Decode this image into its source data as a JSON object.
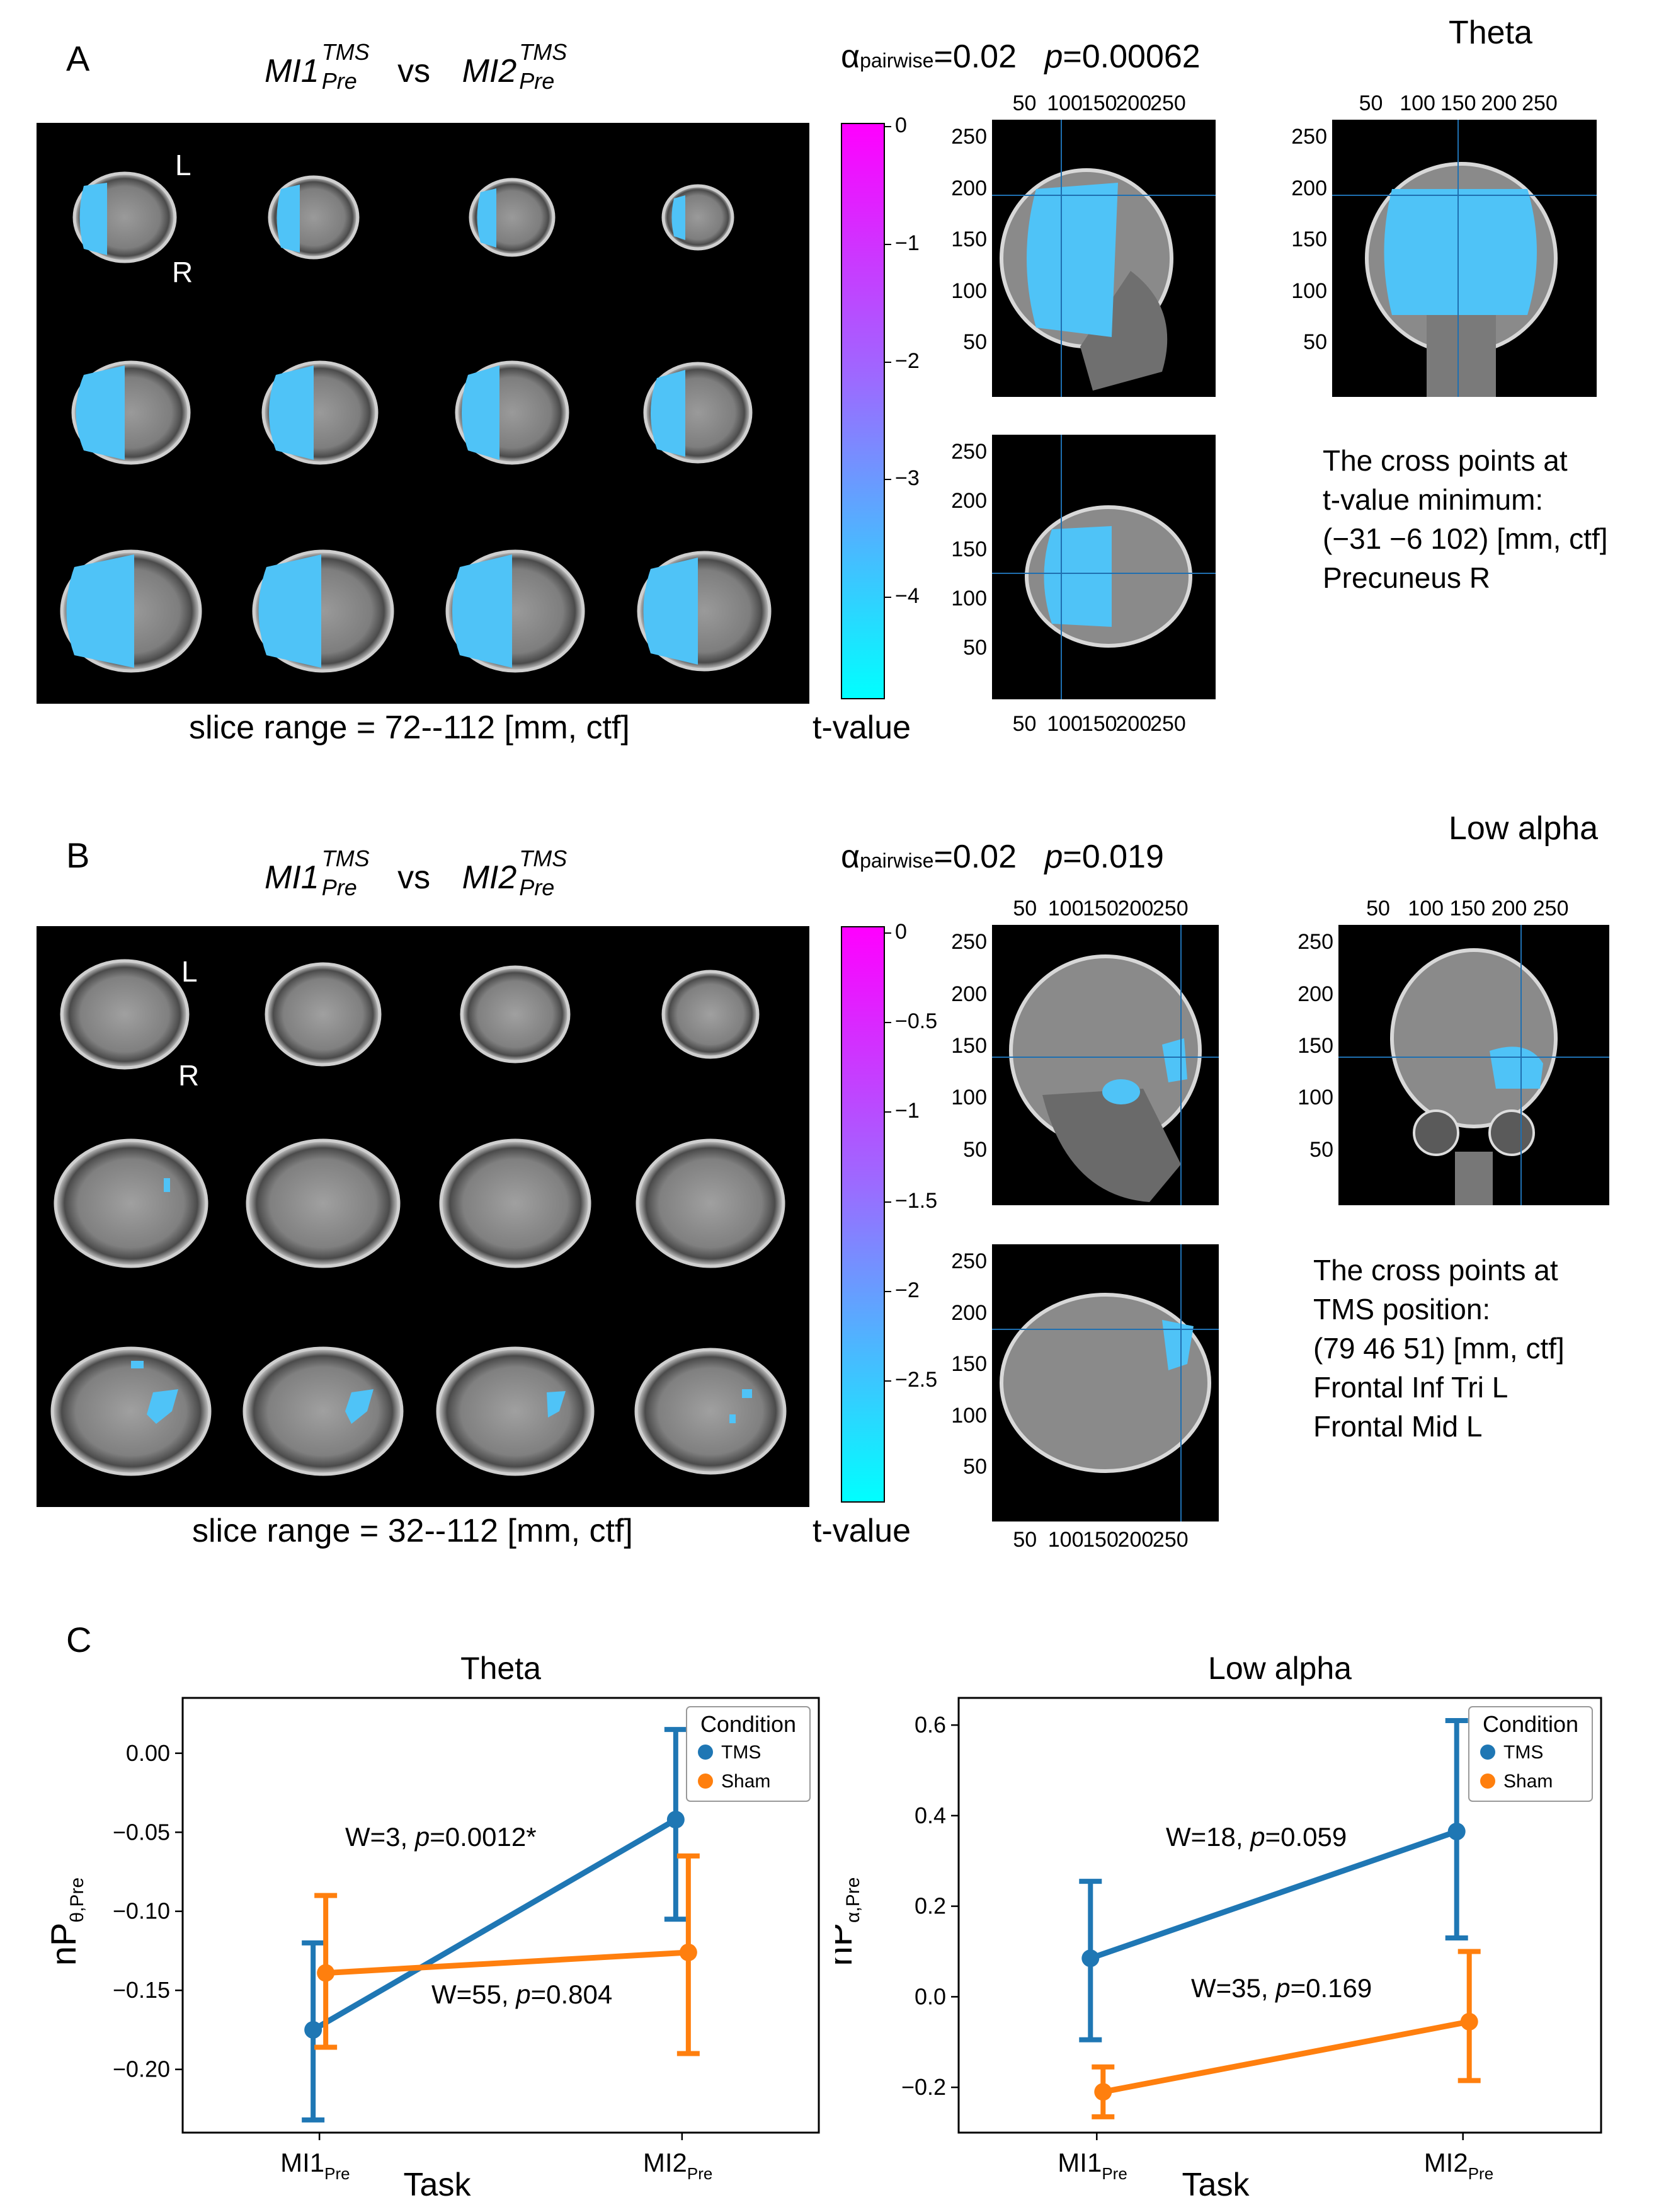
{
  "panel_a": {
    "letter": "A",
    "band": "Theta",
    "comparison": {
      "left_base": "MI1",
      "left_sup": "TMS",
      "left_sub": "Pre",
      "vs": "vs",
      "right_base": "MI2",
      "right_sup": "TMS",
      "right_sub": "Pre"
    },
    "stats": {
      "alpha_symbol": "α",
      "alpha_sub": "pairwise",
      "alpha_val": "=0.02",
      "p_symbol": "p",
      "p_val": "=0.00062"
    },
    "slice_range": "slice range = 72--112 [mm, ctf]",
    "orientation": {
      "left": "L",
      "right": "R"
    },
    "colorbar": {
      "label": "t-value",
      "ticks": [
        "0",
        "−1",
        "−2",
        "−3",
        "−4"
      ]
    },
    "axis_ticks_top": [
      "50",
      "100",
      "150",
      "200",
      "250"
    ],
    "axis_ticks_left": [
      "250",
      "200",
      "150",
      "100",
      "50"
    ],
    "info_lines": [
      "The cross points at",
      "t-value minimum:",
      "(−31 −6 102) [mm, ctf]",
      "Precuneus R"
    ]
  },
  "panel_b": {
    "letter": "B",
    "band": "Low alpha",
    "comparison": {
      "left_base": "MI1",
      "left_sup": "TMS",
      "left_sub": "Pre",
      "vs": "vs",
      "right_base": "MI2",
      "right_sup": "TMS",
      "right_sub": "Pre"
    },
    "stats": {
      "alpha_symbol": "α",
      "alpha_sub": "pairwise",
      "alpha_val": "=0.02",
      "p_symbol": "p",
      "p_val": "=0.019"
    },
    "slice_range": "slice range = 32--112 [mm, ctf]",
    "orientation": {
      "left": "L",
      "right": "R"
    },
    "colorbar": {
      "label": "t-value",
      "ticks": [
        "0",
        "−0.5",
        "−1",
        "−1.5",
        "−2",
        "−2.5"
      ]
    },
    "axis_ticks_top": [
      "50",
      "100",
      "150",
      "200",
      "250"
    ],
    "axis_ticks_left": [
      "250",
      "200",
      "150",
      "100",
      "50"
    ],
    "info_lines": [
      "The cross points at",
      "TMS position:",
      "(79 46 51) [mm, ctf]",
      "Frontal Inf Tri L",
      "Frontal Mid L"
    ]
  },
  "panel_c": {
    "letter": "C"
  },
  "colors": {
    "tms": "#1f77b4",
    "sham": "#ff7f0e",
    "cluster": "#4fc3f7",
    "colorbar_top": "#ff00ff",
    "colorbar_bottom": "#00ffff"
  },
  "chart_data": [
    {
      "type": "line",
      "title": "Theta",
      "xlabel": "Task",
      "ylabel": "nP",
      "ylabel_sub": "θ,Pre",
      "categories": [
        {
          "base": "MI1",
          "sub": "Pre"
        },
        {
          "base": "MI2",
          "sub": "Pre"
        }
      ],
      "ylim": [
        -0.24,
        0.035
      ],
      "yticks": [
        0.0,
        -0.05,
        -0.1,
        -0.15,
        -0.2
      ],
      "ytick_labels": [
        "0.00",
        "−0.05",
        "−0.10",
        "−0.15",
        "−0.20"
      ],
      "legend": {
        "title": "Condition",
        "position": "top-right",
        "entries": [
          "TMS",
          "Sham"
        ]
      },
      "series": [
        {
          "name": "TMS",
          "color": "#1f77b4",
          "values": [
            -0.175,
            -0.042
          ],
          "err_low": [
            -0.232,
            -0.105
          ],
          "err_high": [
            -0.12,
            0.015
          ]
        },
        {
          "name": "Sham",
          "color": "#ff7f0e",
          "values": [
            -0.139,
            -0.126
          ],
          "err_low": [
            -0.186,
            -0.19
          ],
          "err_high": [
            -0.09,
            -0.065
          ]
        }
      ],
      "annotations": [
        {
          "prefix": "W=3, ",
          "p": "p",
          "suffix": "=0.0012*"
        },
        {
          "prefix": "W=55, ",
          "p": "p",
          "suffix": "=0.804"
        }
      ]
    },
    {
      "type": "line",
      "title": "Low alpha",
      "xlabel": "Task",
      "ylabel": "nP",
      "ylabel_sub": "α,Pre",
      "categories": [
        {
          "base": "MI1",
          "sub": "Pre"
        },
        {
          "base": "MI2",
          "sub": "Pre"
        }
      ],
      "ylim": [
        -0.3,
        0.66
      ],
      "yticks": [
        0.6,
        0.4,
        0.2,
        0.0,
        -0.2
      ],
      "ytick_labels": [
        "0.6",
        "0.4",
        "0.2",
        "0.0",
        "−0.2"
      ],
      "legend": {
        "title": "Condition",
        "position": "top-right",
        "entries": [
          "TMS",
          "Sham"
        ]
      },
      "series": [
        {
          "name": "TMS",
          "color": "#1f77b4",
          "values": [
            0.085,
            0.365
          ],
          "err_low": [
            -0.095,
            0.13
          ],
          "err_high": [
            0.255,
            0.61
          ]
        },
        {
          "name": "Sham",
          "color": "#ff7f0e",
          "values": [
            -0.21,
            -0.055
          ],
          "err_low": [
            -0.265,
            -0.185
          ],
          "err_high": [
            -0.155,
            0.1
          ]
        }
      ],
      "annotations": [
        {
          "prefix": "W=18, ",
          "p": "p",
          "suffix": "=0.059"
        },
        {
          "prefix": "W=35, ",
          "p": "p",
          "suffix": "=0.169"
        }
      ]
    }
  ]
}
